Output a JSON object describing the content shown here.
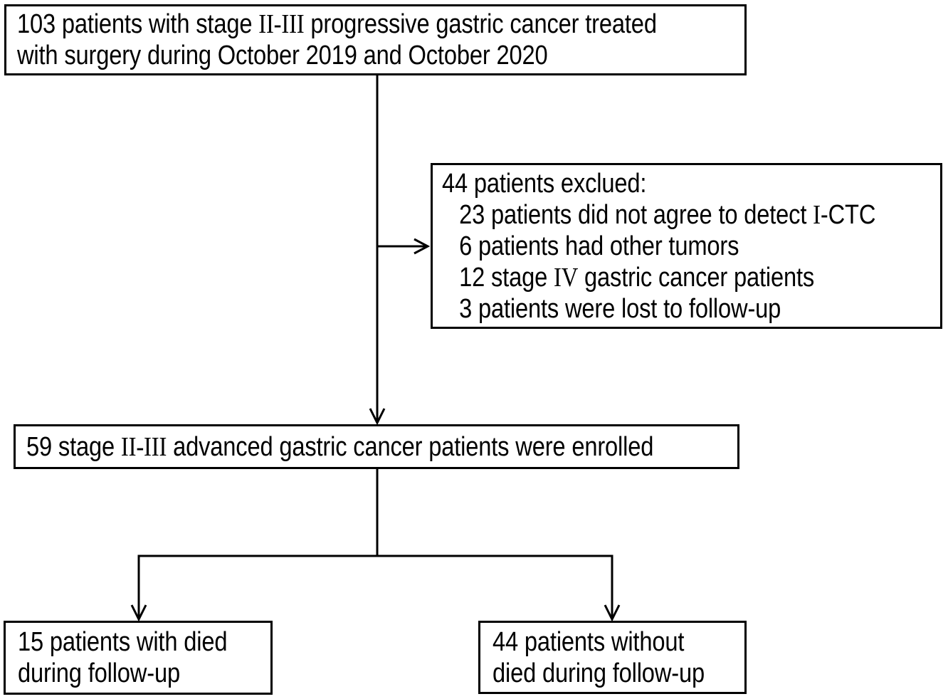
{
  "diagram": {
    "title_semantic": "patient enrollment flowchart",
    "colors": {
      "background": "#ffffff",
      "text": "#000000",
      "box_border": "#000000",
      "connector": "#000000"
    },
    "boxes": {
      "initial": {
        "lines": [
          {
            "segments": [
              {
                "t": "103 patients with stage "
              },
              {
                "t": "II-III",
                "serif": true
              },
              {
                "t": " progressive gastric cancer treated"
              }
            ]
          },
          {
            "segments": [
              {
                "t": "with surgery during October 2019 and October 2020"
              }
            ]
          }
        ]
      },
      "excluded": {
        "lines": [
          {
            "segments": [
              {
                "t": "44 patients exclued:"
              }
            ]
          },
          {
            "indent": true,
            "segments": [
              {
                "t": "23 patients did not agree to detect "
              },
              {
                "t": "I",
                "serif": true
              },
              {
                "t": "-CTC"
              }
            ]
          },
          {
            "indent": true,
            "segments": [
              {
                "t": "6 patients had other tumors"
              }
            ]
          },
          {
            "indent": true,
            "segments": [
              {
                "t": "12 stage "
              },
              {
                "t": "IV",
                "serif": true
              },
              {
                "t": " gastric cancer patients"
              }
            ]
          },
          {
            "indent": true,
            "segments": [
              {
                "t": "3 patients were lost to follow-up"
              }
            ]
          }
        ]
      },
      "enrolled": {
        "lines": [
          {
            "segments": [
              {
                "t": "59 stage "
              },
              {
                "t": "II-III",
                "serif": true
              },
              {
                "t": " advanced gastric cancer patients were enrolled"
              }
            ]
          }
        ]
      },
      "died": {
        "lines": [
          {
            "segments": [
              {
                "t": "15 patients with died"
              }
            ]
          },
          {
            "segments": [
              {
                "t": "during follow-up"
              }
            ]
          }
        ]
      },
      "survived": {
        "lines": [
          {
            "segments": [
              {
                "t": "44 patients without"
              }
            ]
          },
          {
            "segments": [
              {
                "t": "died during follow-up"
              }
            ]
          }
        ]
      }
    }
  }
}
